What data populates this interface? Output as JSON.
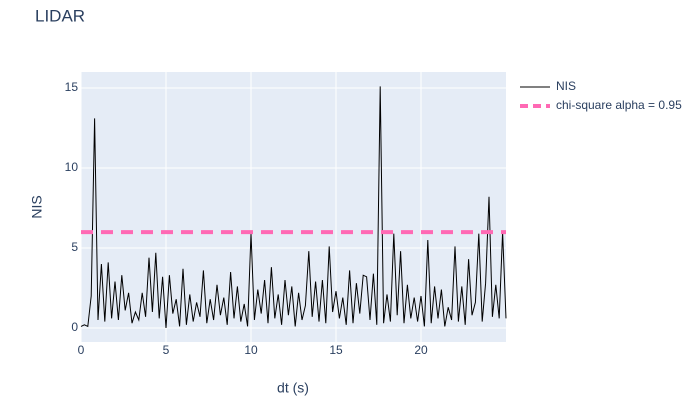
{
  "chart_data": {
    "type": "line",
    "title": "LIDAR",
    "x_label": "dt (s)",
    "y_label": "NIS",
    "xlim": [
      0,
      25
    ],
    "xticks": [
      0,
      5,
      10,
      15,
      20
    ],
    "ylim": [
      -0.875,
      16
    ],
    "yticks": [
      0,
      5,
      10,
      15
    ],
    "grid": true,
    "legend": "right",
    "series": [
      {
        "name": "NIS",
        "color": "#000000",
        "dash": "solid",
        "x": [
          0,
          0.2,
          0.4,
          0.6,
          0.8,
          1.0,
          1.2,
          1.4,
          1.6,
          1.8,
          2.0,
          2.2,
          2.4,
          2.6,
          2.8,
          3.0,
          3.2,
          3.4,
          3.6,
          3.8,
          4.0,
          4.2,
          4.4,
          4.6,
          4.8,
          5.0,
          5.2,
          5.4,
          5.6,
          5.8,
          6.0,
          6.2,
          6.4,
          6.6,
          6.8,
          7.0,
          7.2,
          7.4,
          7.6,
          7.8,
          8.0,
          8.2,
          8.4,
          8.6,
          8.8,
          9.0,
          9.2,
          9.4,
          9.6,
          9.8,
          10.0,
          10.2,
          10.4,
          10.6,
          10.8,
          11.0,
          11.2,
          11.4,
          11.6,
          11.8,
          12.0,
          12.2,
          12.4,
          12.6,
          12.8,
          13.0,
          13.2,
          13.4,
          13.6,
          13.8,
          14.0,
          14.2,
          14.4,
          14.6,
          14.8,
          15.0,
          15.2,
          15.4,
          15.6,
          15.8,
          16.0,
          16.2,
          16.4,
          16.6,
          16.8,
          17.0,
          17.2,
          17.4,
          17.6,
          17.8,
          18.0,
          18.2,
          18.4,
          18.6,
          18.8,
          19.0,
          19.2,
          19.4,
          19.6,
          19.8,
          20.0,
          20.2,
          20.4,
          20.6,
          20.8,
          21.0,
          21.2,
          21.4,
          21.6,
          21.8,
          22.0,
          22.2,
          22.4,
          22.6,
          22.8,
          23.0,
          23.2,
          23.4,
          23.6,
          23.8,
          24.0,
          24.2,
          24.4,
          24.6,
          24.8,
          25.0
        ],
        "values": [
          0.1,
          0.2,
          0.1,
          2.0,
          13.1,
          0.5,
          4.0,
          0.4,
          4.1,
          0.6,
          2.9,
          0.5,
          3.3,
          1.1,
          2.2,
          0.3,
          1.0,
          0.5,
          2.2,
          0.7,
          4.4,
          1.0,
          4.7,
          0.6,
          3.2,
          0.0,
          3.3,
          0.9,
          1.8,
          0.1,
          3.7,
          0.2,
          2.1,
          0.4,
          1.6,
          0.7,
          3.6,
          0.3,
          1.8,
          0.5,
          2.7,
          0.8,
          1.9,
          0.2,
          3.5,
          0.6,
          2.6,
          0.4,
          1.5,
          0.1,
          5.9,
          0.5,
          2.4,
          0.9,
          3.0,
          0.3,
          3.8,
          0.6,
          2.1,
          0.2,
          3.0,
          0.8,
          2.6,
          0.1,
          2.2,
          0.5,
          1.4,
          4.8,
          0.7,
          2.9,
          0.4,
          3.0,
          0.3,
          5.1,
          1.0,
          2.3,
          0.6,
          1.9,
          0.2,
          3.6,
          0.3,
          2.8,
          0.9,
          3.3,
          3.2,
          0.5,
          3.4,
          0.2,
          15.1,
          0.3,
          2.1,
          0.4,
          5.9,
          0.8,
          4.8,
          0.3,
          2.7,
          0.6,
          1.9,
          0.4,
          2.0,
          0.1,
          5.5,
          0.3,
          2.6,
          0.6,
          2.4,
          0.1,
          1.3,
          0.5,
          5.1,
          0.4,
          2.6,
          0.2,
          4.3,
          0.8,
          1.6,
          5.9,
          0.4,
          2.8,
          8.2,
          0.7,
          2.7,
          0.6,
          6.0,
          0.6
        ]
      },
      {
        "name": "chi-square alpha = 0.95",
        "color": "#ff69b4",
        "dash": "dash",
        "x": [
          0,
          25
        ],
        "values": [
          5.991,
          5.991
        ]
      }
    ]
  }
}
